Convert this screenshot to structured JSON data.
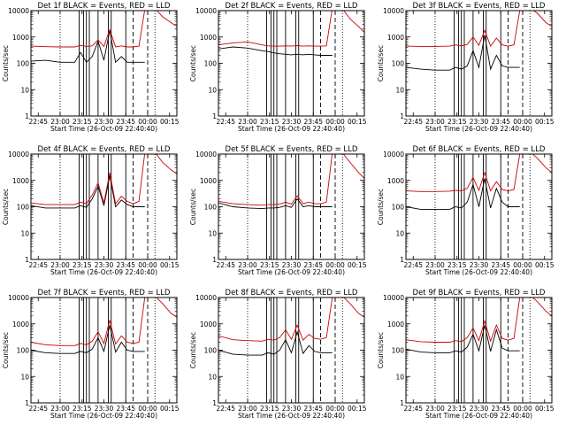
{
  "figure": {
    "background": "#ffffff",
    "colors": {
      "events": "#000000",
      "lld": "#cc0000",
      "axes": "#000000"
    }
  },
  "chart_data": [
    {
      "type": "line",
      "title": "Det 1f BLACK = Events, RED = LLD",
      "xlabel": "Start Time (26-Oct-09 22:40:40)",
      "ylabel": "Counts/sec",
      "yscale": "log",
      "ylim": [
        1,
        10000
      ],
      "yticks": [
        "1",
        "10",
        "100",
        "1000",
        "10000"
      ],
      "xlim": [
        "22:40",
        "00:20"
      ],
      "xticks": [
        "22:45",
        "23:00",
        "23:15",
        "23:30",
        "23:45",
        "00:00",
        "00:15"
      ],
      "x": [
        "22:40",
        "22:50",
        "23:00",
        "23:10",
        "23:14",
        "23:18",
        "23:22",
        "23:26",
        "23:30",
        "23:34",
        "23:38",
        "23:42",
        "23:46",
        "23:50",
        "23:54",
        "23:58",
        "00:04",
        "00:10",
        "00:16",
        "00:20"
      ],
      "series": [
        {
          "name": "BLACK = Events",
          "color": "#000000",
          "values": [
            120,
            130,
            110,
            110,
            260,
            110,
            180,
            700,
            130,
            1800,
            110,
            180,
            110,
            110,
            110,
            110,
            null,
            null,
            null,
            null
          ]
        },
        {
          "name": "RED = LLD",
          "color": "#cc0000",
          "values": [
            450,
            430,
            420,
            420,
            480,
            440,
            460,
            780,
            440,
            1900,
            420,
            460,
            420,
            420,
            450,
            11000,
            14000,
            6000,
            3500,
            2500
          ]
        }
      ],
      "markers": {
        "solid": [
          "23:13",
          "23:16",
          "23:18",
          "23:20",
          "23:26",
          "23:33",
          "23:35",
          "23:45"
        ],
        "dotted": [
          "23:00",
          "00:05"
        ],
        "dashed": [
          "23:50",
          "00:00"
        ]
      }
    },
    {
      "type": "line",
      "title": "Det 2f BLACK = Events, RED = LLD",
      "xlabel": "Start Time (26-Oct-09 22:40:40)",
      "ylabel": "Counts/sec",
      "yscale": "log",
      "ylim": [
        1,
        10000
      ],
      "yticks": [
        "1",
        "10",
        "100",
        "1000",
        "10000"
      ],
      "xlim": [
        "22:40",
        "00:20"
      ],
      "xticks": [
        "22:45",
        "23:00",
        "23:15",
        "23:30",
        "23:45",
        "00:00",
        "00:15"
      ],
      "x": [
        "22:40",
        "22:50",
        "23:00",
        "23:10",
        "23:14",
        "23:18",
        "23:22",
        "23:26",
        "23:30",
        "23:34",
        "23:38",
        "23:42",
        "23:46",
        "23:50",
        "23:54",
        "23:58",
        "00:04",
        "00:10",
        "00:16",
        "00:20"
      ],
      "series": [
        {
          "name": "BLACK = Events",
          "color": "#000000",
          "values": [
            350,
            420,
            380,
            300,
            280,
            250,
            230,
            220,
            210,
            220,
            210,
            220,
            210,
            200,
            200,
            200,
            null,
            null,
            null,
            null
          ]
        },
        {
          "name": "RED = LLD",
          "color": "#cc0000",
          "values": [
            500,
            600,
            650,
            500,
            460,
            450,
            450,
            460,
            450,
            470,
            450,
            460,
            450,
            450,
            460,
            12000,
            14000,
            5000,
            2500,
            1500
          ]
        }
      ],
      "markers": {
        "solid": [
          "23:13",
          "23:16",
          "23:18",
          "23:20",
          "23:26",
          "23:33",
          "23:35",
          "23:45"
        ],
        "dotted": [
          "23:00",
          "00:05"
        ],
        "dashed": [
          "23:50",
          "00:00"
        ]
      }
    },
    {
      "type": "line",
      "title": "Det 3f BLACK = Events, RED = LLD",
      "xlabel": "Start Time (26-Oct-09 22:40:40)",
      "ylabel": "Counts/sec",
      "yscale": "log",
      "ylim": [
        1,
        10000
      ],
      "yticks": [
        "1",
        "10",
        "100",
        "1000",
        "10000"
      ],
      "xlim": [
        "22:40",
        "00:20"
      ],
      "xticks": [
        "22:45",
        "23:00",
        "23:15",
        "23:30",
        "23:45",
        "00:00",
        "00:15"
      ],
      "x": [
        "22:40",
        "22:50",
        "23:00",
        "23:10",
        "23:14",
        "23:18",
        "23:22",
        "23:26",
        "23:30",
        "23:34",
        "23:38",
        "23:42",
        "23:46",
        "23:50",
        "23:54",
        "23:58",
        "00:04",
        "00:10",
        "00:16",
        "00:20"
      ],
      "series": [
        {
          "name": "BLACK = Events",
          "color": "#000000",
          "values": [
            70,
            60,
            55,
            55,
            70,
            60,
            80,
            300,
            70,
            1200,
            60,
            200,
            80,
            70,
            70,
            70,
            null,
            null,
            null,
            null
          ]
        },
        {
          "name": "RED = LLD",
          "color": "#cc0000",
          "values": [
            450,
            440,
            440,
            450,
            500,
            460,
            520,
            1000,
            480,
            1800,
            450,
            900,
            500,
            450,
            500,
            10000,
            14000,
            8000,
            3500,
            2500
          ]
        }
      ],
      "markers": {
        "solid": [
          "23:13",
          "23:16",
          "23:18",
          "23:20",
          "23:26",
          "23:33",
          "23:35",
          "23:45"
        ],
        "dotted": [
          "23:00",
          "00:05"
        ],
        "dashed": [
          "23:50",
          "00:00"
        ]
      }
    },
    {
      "type": "line",
      "title": "Det 4f BLACK = Events, RED = LLD",
      "xlabel": "Start Time (26-Oct-09 22:40:40)",
      "ylabel": "Counts/sec",
      "yscale": "log",
      "ylim": [
        1,
        10000
      ],
      "yticks": [
        "1",
        "10",
        "100",
        "1000",
        "10000"
      ],
      "xlim": [
        "22:40",
        "00:20"
      ],
      "xticks": [
        "22:45",
        "23:00",
        "23:15",
        "23:30",
        "23:45",
        "00:00",
        "00:15"
      ],
      "x": [
        "22:40",
        "22:50",
        "23:00",
        "23:10",
        "23:14",
        "23:18",
        "23:22",
        "23:26",
        "23:30",
        "23:34",
        "23:38",
        "23:42",
        "23:46",
        "23:50",
        "23:54",
        "23:58",
        "00:04",
        "00:10",
        "00:16",
        "00:20"
      ],
      "series": [
        {
          "name": "BLACK = Events",
          "color": "#000000",
          "values": [
            110,
            90,
            90,
            90,
            110,
            95,
            200,
            600,
            110,
            1500,
            100,
            180,
            120,
            100,
            100,
            100,
            null,
            null,
            null,
            null
          ]
        },
        {
          "name": "RED = LLD",
          "color": "#cc0000",
          "values": [
            140,
            120,
            120,
            120,
            150,
            130,
            280,
            800,
            140,
            2000,
            130,
            250,
            160,
            130,
            160,
            11000,
            14000,
            5000,
            2500,
            1800
          ]
        }
      ],
      "markers": {
        "solid": [
          "23:13",
          "23:16",
          "23:18",
          "23:20",
          "23:26",
          "23:33",
          "23:35",
          "23:45"
        ],
        "dotted": [
          "23:00",
          "00:05"
        ],
        "dashed": [
          "23:50",
          "00:00"
        ]
      }
    },
    {
      "type": "line",
      "title": "Det 5f BLACK = Events, RED = LLD",
      "xlabel": "Start Time (26-Oct-09 22:40:40)",
      "ylabel": "Counts/sec",
      "yscale": "log",
      "ylim": [
        1,
        10000
      ],
      "yticks": [
        "1",
        "10",
        "100",
        "1000",
        "10000"
      ],
      "xlim": [
        "22:40",
        "00:20"
      ],
      "xticks": [
        "22:45",
        "23:00",
        "23:15",
        "23:30",
        "23:45",
        "00:00",
        "00:15"
      ],
      "x": [
        "22:40",
        "22:50",
        "23:00",
        "23:10",
        "23:14",
        "23:18",
        "23:22",
        "23:26",
        "23:30",
        "23:34",
        "23:38",
        "23:42",
        "23:46",
        "23:50",
        "23:54",
        "23:58",
        "00:04",
        "00:10",
        "00:16",
        "00:20"
      ],
      "series": [
        {
          "name": "BLACK = Events",
          "color": "#000000",
          "values": [
            140,
            100,
            90,
            85,
            90,
            90,
            95,
            110,
            95,
            200,
            100,
            110,
            100,
            100,
            100,
            100,
            null,
            null,
            null,
            null
          ]
        },
        {
          "name": "RED = LLD",
          "color": "#cc0000",
          "values": [
            160,
            130,
            120,
            115,
            120,
            120,
            125,
            150,
            125,
            260,
            130,
            150,
            130,
            130,
            150,
            11000,
            13000,
            5000,
            2000,
            1200
          ]
        }
      ],
      "markers": {
        "solid": [
          "23:13",
          "23:16",
          "23:18",
          "23:20",
          "23:26",
          "23:33",
          "23:35",
          "23:45"
        ],
        "dotted": [
          "23:00",
          "00:05"
        ],
        "dashed": [
          "23:50",
          "00:00"
        ]
      }
    },
    {
      "type": "line",
      "title": "Det 6f BLACK = Events, RED = LLD",
      "xlabel": "Start Time (26-Oct-09 22:40:40)",
      "ylabel": "Counts/sec",
      "yscale": "log",
      "ylim": [
        1,
        10000
      ],
      "yticks": [
        "1",
        "10",
        "100",
        "1000",
        "10000"
      ],
      "xlim": [
        "22:40",
        "00:20"
      ],
      "xticks": [
        "22:45",
        "23:00",
        "23:15",
        "23:30",
        "23:45",
        "00:00",
        "00:15"
      ],
      "x": [
        "22:40",
        "22:50",
        "23:00",
        "23:10",
        "23:14",
        "23:18",
        "23:22",
        "23:26",
        "23:30",
        "23:34",
        "23:38",
        "23:42",
        "23:46",
        "23:50",
        "23:54",
        "23:58",
        "00:04",
        "00:10",
        "00:16",
        "00:20"
      ],
      "series": [
        {
          "name": "BLACK = Events",
          "color": "#000000",
          "values": [
            100,
            80,
            80,
            80,
            100,
            90,
            150,
            700,
            100,
            1200,
            90,
            500,
            150,
            100,
            100,
            100,
            null,
            null,
            null,
            null
          ]
        },
        {
          "name": "RED = LLD",
          "color": "#cc0000",
          "values": [
            400,
            380,
            380,
            390,
            420,
            400,
            500,
            1300,
            420,
            2000,
            400,
            900,
            450,
            400,
            450,
            10000,
            14000,
            7000,
            3000,
            2000
          ]
        }
      ],
      "markers": {
        "solid": [
          "23:13",
          "23:16",
          "23:18",
          "23:20",
          "23:26",
          "23:33",
          "23:35",
          "23:45"
        ],
        "dotted": [
          "23:00",
          "00:05"
        ],
        "dashed": [
          "23:50",
          "00:00"
        ]
      }
    },
    {
      "type": "line",
      "title": "Det 7f BLACK = Events, RED = LLD",
      "xlabel": "Start Time (26-Oct-09 22:40:40)",
      "ylabel": "Counts/sec",
      "yscale": "log",
      "ylim": [
        1,
        10000
      ],
      "yticks": [
        "1",
        "10",
        "100",
        "1000",
        "10000"
      ],
      "xlim": [
        "22:40",
        "00:20"
      ],
      "xticks": [
        "22:45",
        "23:00",
        "23:15",
        "23:30",
        "23:45",
        "00:00",
        "00:15"
      ],
      "x": [
        "22:40",
        "22:50",
        "23:00",
        "23:10",
        "23:14",
        "23:18",
        "23:22",
        "23:26",
        "23:30",
        "23:34",
        "23:38",
        "23:42",
        "23:46",
        "23:50",
        "23:54",
        "23:58",
        "00:04",
        "00:10",
        "00:16",
        "00:20"
      ],
      "series": [
        {
          "name": "BLACK = Events",
          "color": "#000000",
          "values": [
            100,
            80,
            75,
            75,
            90,
            80,
            110,
            300,
            90,
            900,
            85,
            200,
            100,
            90,
            90,
            90,
            null,
            null,
            null,
            null
          ]
        },
        {
          "name": "RED = LLD",
          "color": "#cc0000",
          "values": [
            200,
            160,
            150,
            150,
            180,
            160,
            220,
            500,
            180,
            1400,
            170,
            350,
            200,
            180,
            200,
            10000,
            13000,
            6000,
            2500,
            1800
          ]
        }
      ],
      "markers": {
        "solid": [
          "23:13",
          "23:16",
          "23:18",
          "23:20",
          "23:26",
          "23:33",
          "23:35",
          "23:45"
        ],
        "dotted": [
          "23:00",
          "00:05"
        ],
        "dashed": [
          "23:50",
          "00:00"
        ]
      }
    },
    {
      "type": "line",
      "title": "Det 8f BLACK = Events, RED = LLD",
      "xlabel": "Start Time (26-Oct-09 22:40:40)",
      "ylabel": "Counts/sec",
      "yscale": "log",
      "ylim": [
        1,
        10000
      ],
      "yticks": [
        "1",
        "10",
        "100",
        "1000",
        "10000"
      ],
      "xlim": [
        "22:40",
        "00:20"
      ],
      "xticks": [
        "22:45",
        "23:00",
        "23:15",
        "23:30",
        "23:45",
        "00:00",
        "00:15"
      ],
      "x": [
        "22:40",
        "22:50",
        "23:00",
        "23:10",
        "23:14",
        "23:18",
        "23:22",
        "23:26",
        "23:30",
        "23:34",
        "23:38",
        "23:42",
        "23:46",
        "23:50",
        "23:54",
        "23:58",
        "00:04",
        "00:10",
        "00:16",
        "00:20"
      ],
      "series": [
        {
          "name": "BLACK = Events",
          "color": "#000000",
          "values": [
            100,
            70,
            65,
            65,
            80,
            70,
            100,
            250,
            80,
            500,
            75,
            150,
            90,
            80,
            80,
            80,
            null,
            null,
            null,
            null
          ]
        },
        {
          "name": "RED = LLD",
          "color": "#cc0000",
          "values": [
            350,
            250,
            230,
            220,
            260,
            240,
            300,
            600,
            260,
            900,
            240,
            400,
            280,
            260,
            300,
            10000,
            13000,
            6000,
            2500,
            1800
          ]
        }
      ],
      "markers": {
        "solid": [
          "23:13",
          "23:16",
          "23:18",
          "23:20",
          "23:26",
          "23:33",
          "23:35",
          "23:45"
        ],
        "dotted": [
          "23:00",
          "00:05"
        ],
        "dashed": [
          "23:50",
          "00:00"
        ]
      }
    },
    {
      "type": "line",
      "title": "Det 9f BLACK = Events, RED = LLD",
      "xlabel": "Start Time (26-Oct-09 22:40:40)",
      "ylabel": "Counts/sec",
      "yscale": "log",
      "ylim": [
        1,
        10000
      ],
      "yticks": [
        "1",
        "10",
        "100",
        "1000",
        "10000"
      ],
      "xlim": [
        "22:40",
        "00:20"
      ],
      "xticks": [
        "22:45",
        "23:00",
        "23:15",
        "23:30",
        "23:45",
        "00:00",
        "00:15"
      ],
      "x": [
        "22:40",
        "22:50",
        "23:00",
        "23:10",
        "23:14",
        "23:18",
        "23:22",
        "23:26",
        "23:30",
        "23:34",
        "23:38",
        "23:42",
        "23:46",
        "23:50",
        "23:54",
        "23:58",
        "00:04",
        "00:10",
        "00:16",
        "00:20"
      ],
      "series": [
        {
          "name": "BLACK = Events",
          "color": "#000000",
          "values": [
            110,
            85,
            80,
            80,
            95,
            85,
            130,
            400,
            95,
            900,
            90,
            600,
            120,
            95,
            95,
            95,
            null,
            null,
            null,
            null
          ]
        },
        {
          "name": "RED = LLD",
          "color": "#cc0000",
          "values": [
            250,
            210,
            200,
            200,
            230,
            210,
            300,
            700,
            230,
            1300,
            220,
            900,
            280,
            240,
            280,
            10000,
            14000,
            7000,
            3000,
            2000
          ]
        }
      ],
      "markers": {
        "solid": [
          "23:13",
          "23:16",
          "23:18",
          "23:20",
          "23:26",
          "23:33",
          "23:35",
          "23:45"
        ],
        "dotted": [
          "23:00",
          "00:05"
        ],
        "dashed": [
          "23:50",
          "00:00"
        ]
      }
    }
  ]
}
